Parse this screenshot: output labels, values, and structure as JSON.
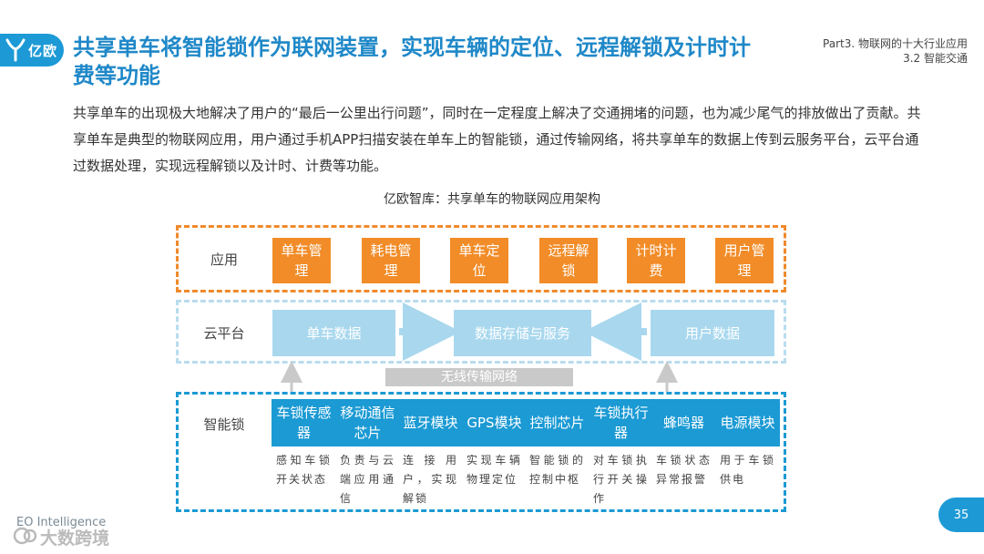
{
  "header": {
    "logo_text": "亿欧",
    "title": "共享单车将智能锁作为联网装置，实现车辆的定位、远程解锁及计时计费等功能",
    "part": "Part3. 物联网的十大行业应用",
    "section": "3.2 智能交通"
  },
  "description": "共享单车的出现极大地解决了用户的“最后一公里出行问题”，同时在一定程度上解决了交通拥堵的问题，也为减少尾气的排放做出了贡献。共享单车是典型的物联网应用，用户通过手机APP扫描安装在单车上的智能锁，通过传输网络，将共享单车的数据上传到云服务平台，云平台通过数据处理，实现远程解锁以及计时、计费等功能。",
  "diagram": {
    "caption": "亿欧智库：共享单车的物联网应用架构",
    "app_layer": {
      "label": "应用",
      "items": [
        "单车管理",
        "耗电管理",
        "单车定位",
        "远程解锁",
        "计时计费",
        "用户管理"
      ]
    },
    "cloud_layer": {
      "label": "云平台",
      "items": [
        "单车数据",
        "数据存储与服务",
        "用户数据"
      ]
    },
    "network_label": "无线传输网络",
    "lock_layer": {
      "label": "智能锁",
      "items": [
        {
          "name": "车锁传感器",
          "desc": "感知车锁开关状态"
        },
        {
          "name": "移动通信芯片",
          "desc": "负责与云端应用通信"
        },
        {
          "name": "蓝牙模块",
          "desc": "连接用户，实现解锁"
        },
        {
          "name": "GPS模块",
          "desc": "实现车辆物理定位"
        },
        {
          "name": "控制芯片",
          "desc": "智能锁的控制中枢"
        },
        {
          "name": "车锁执行器",
          "desc": "对车锁执行开关操作"
        },
        {
          "name": "蜂鸣器",
          "desc": "车锁状态异常报警"
        },
        {
          "name": "电源模块",
          "desc": "用于车锁供电"
        }
      ]
    }
  },
  "footer": {
    "brand_en": "EO Intelligence",
    "watermark": "大数跨境",
    "page_number": "35"
  },
  "colors": {
    "brand_blue": "#1d9ad6",
    "orange": "#f28c28",
    "light_blue": "#a9d8ee",
    "gray": "#c9c9c9"
  }
}
